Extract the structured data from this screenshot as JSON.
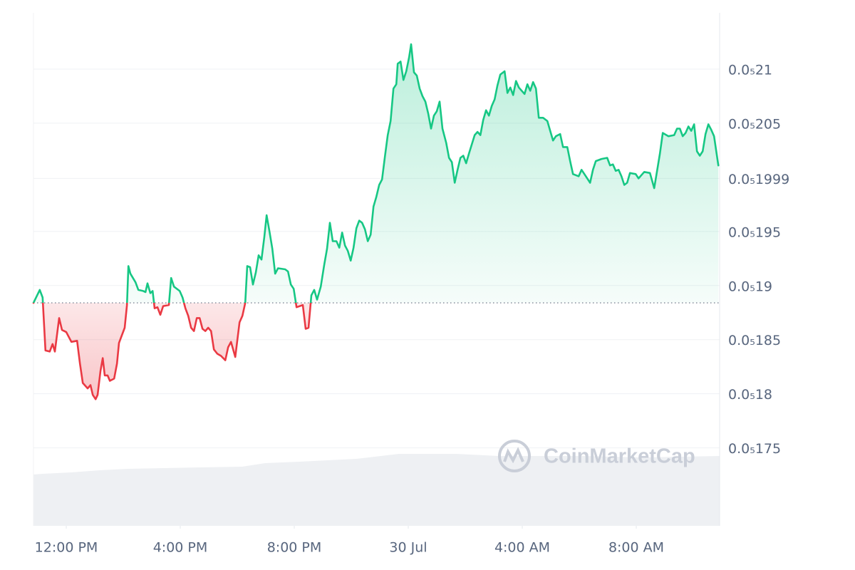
{
  "chart_data": {
    "type": "line",
    "watermark": "CoinMarketCap",
    "up_color": "#16c784",
    "down_color": "#ea3943",
    "grid": true,
    "baseline": 1.884e-06,
    "xlim": [
      -1.15,
      22.925
    ],
    "ylim": [
      1.678e-06,
      2.152e-06
    ],
    "xticks": [
      {
        "value": 0,
        "label": "12:00 PM"
      },
      {
        "value": 4,
        "label": "4:00 PM"
      },
      {
        "value": 8,
        "label": "8:00 PM"
      },
      {
        "value": 12,
        "label": "30 Jul"
      },
      {
        "value": 16,
        "label": "4:00 AM"
      },
      {
        "value": 20,
        "label": "8:00 AM"
      }
    ],
    "yticks": [
      {
        "value": 2.1e-06,
        "label": "0.0₅21"
      },
      {
        "value": 2.05e-06,
        "label": "0.0₅205"
      },
      {
        "value": 1.999e-06,
        "label": "0.0₅1999"
      },
      {
        "value": 1.95e-06,
        "label": "0.0₅195"
      },
      {
        "value": 1.9e-06,
        "label": "0.0₅19"
      },
      {
        "value": 1.85e-06,
        "label": "0.0₅185"
      },
      {
        "value": 1.8e-06,
        "label": "0.0₅18"
      },
      {
        "value": 1.75e-06,
        "label": "0.0₅175"
      }
    ],
    "x": [
      -1.15,
      -0.93,
      -0.83,
      -0.73,
      -0.58,
      -0.48,
      -0.4,
      -0.25,
      -0.15,
      0,
      0.18,
      0.38,
      0.48,
      0.58,
      0.75,
      0.85,
      0.93,
      1.03,
      1.1,
      1.2,
      1.28,
      1.35,
      1.45,
      1.53,
      1.68,
      1.78,
      1.85,
      2.05,
      2.13,
      2.18,
      2.25,
      2.43,
      2.53,
      2.7,
      2.78,
      2.85,
      2.95,
      3.03,
      3.1,
      3.2,
      3.3,
      3.4,
      3.6,
      3.68,
      3.78,
      3.98,
      4.08,
      4.18,
      4.28,
      4.38,
      4.48,
      4.58,
      4.68,
      4.78,
      4.88,
      4.98,
      5.08,
      5.18,
      5.3,
      5.43,
      5.58,
      5.68,
      5.78,
      5.93,
      6.08,
      6.18,
      6.28,
      6.35,
      6.45,
      6.55,
      6.65,
      6.75,
      6.85,
      6.95,
      7.03,
      7.13,
      7.23,
      7.33,
      7.43,
      7.68,
      7.78,
      7.88,
      7.98,
      8.08,
      8.3,
      8.4,
      8.5,
      8.6,
      8.7,
      8.8,
      8.93,
      9.05,
      9.15,
      9.25,
      9.35,
      9.48,
      9.58,
      9.68,
      9.78,
      9.88,
      9.98,
      10.08,
      10.18,
      10.28,
      10.38,
      10.48,
      10.58,
      10.68,
      10.78,
      10.88,
      10.98,
      11.08,
      11.18,
      11.28,
      11.38,
      11.48,
      11.58,
      11.63,
      11.73,
      11.83,
      11.93,
      12.03,
      12.1,
      12.2,
      12.3,
      12.4,
      12.5,
      12.6,
      12.7,
      12.8,
      12.9,
      13.0,
      13.1,
      13.2,
      13.33,
      13.43,
      13.53,
      13.63,
      13.73,
      13.83,
      13.93,
      14.03,
      14.13,
      14.33,
      14.43,
      14.53,
      14.63,
      14.73,
      14.83,
      14.93,
      15.03,
      15.13,
      15.23,
      15.38,
      15.48,
      15.58,
      15.68,
      15.78,
      15.88,
      16.08,
      16.18,
      16.28,
      16.38,
      16.48,
      16.58,
      16.73,
      16.88,
      16.98,
      17.08,
      17.18,
      17.33,
      17.43,
      17.58,
      17.68,
      17.78,
      17.98,
      18.08,
      18.18,
      18.38,
      18.48,
      18.58,
      18.78,
      18.98,
      19.08,
      19.18,
      19.28,
      19.38,
      19.48,
      19.58,
      19.68,
      19.78,
      19.98,
      20.08,
      20.28,
      20.48,
      20.63,
      20.73,
      20.83,
      20.93,
      21.13,
      21.33,
      21.43,
      21.53,
      21.63,
      21.73,
      21.83,
      21.93,
      22.03,
      22.13,
      22.23,
      22.33,
      22.43,
      22.53,
      22.63,
      22.73,
      22.88
    ],
    "values": [
      1.884e-06,
      1.896e-06,
      1.889e-06,
      1.84e-06,
      1.839e-06,
      1.846e-06,
      1.839e-06,
      1.87e-06,
      1.859e-06,
      1.857e-06,
      1.848e-06,
      1.849e-06,
      1.828e-06,
      1.81e-06,
      1.805e-06,
      1.808e-06,
      1.799e-06,
      1.795e-06,
      1.799e-06,
      1.821e-06,
      1.833e-06,
      1.817e-06,
      1.817e-06,
      1.812e-06,
      1.814e-06,
      1.828e-06,
      1.847e-06,
      1.861e-06,
      1.882e-06,
      1.918e-06,
      1.911e-06,
      1.903e-06,
      1.896e-06,
      1.895e-06,
      1.894e-06,
      1.902e-06,
      1.893e-06,
      1.895e-06,
      1.879e-06,
      1.88e-06,
      1.873e-06,
      1.881e-06,
      1.882e-06,
      1.907e-06,
      1.899e-06,
      1.895e-06,
      1.889e-06,
      1.879e-06,
      1.872e-06,
      1.861e-06,
      1.858e-06,
      1.87e-06,
      1.87e-06,
      1.86e-06,
      1.858e-06,
      1.861e-06,
      1.858e-06,
      1.841e-06,
      1.837e-06,
      1.835e-06,
      1.831e-06,
      1.843e-06,
      1.848e-06,
      1.834e-06,
      1.866e-06,
      1.872e-06,
      1.884e-06,
      1.918e-06,
      1.917e-06,
      1.901e-06,
      1.912e-06,
      1.928e-06,
      1.924e-06,
      1.945e-06,
      1.965e-06,
      1.95e-06,
      1.934e-06,
      1.911e-06,
      1.916e-06,
      1.915e-06,
      1.913e-06,
      1.901e-06,
      1.897e-06,
      1.88e-06,
      1.882e-06,
      1.86e-06,
      1.861e-06,
      1.891e-06,
      1.896e-06,
      1.887e-06,
      1.899e-06,
      1.919e-06,
      1.934e-06,
      1.958e-06,
      1.941e-06,
      1.941e-06,
      1.935e-06,
      1.949e-06,
      1.937e-06,
      1.932e-06,
      1.923e-06,
      1.935e-06,
      1.953e-06,
      1.96e-06,
      1.958e-06,
      1.952e-06,
      1.941e-06,
      1.947e-06,
      1.973e-06,
      1.982e-06,
      1.993e-06,
      1.998e-06,
      2.019e-06,
      2.039e-06,
      2.052e-06,
      2.082e-06,
      2.086e-06,
      2.105e-06,
      2.107e-06,
      2.09e-06,
      2.098e-06,
      2.111e-06,
      2.123e-06,
      2.097e-06,
      2.094e-06,
      2.082e-06,
      2.075e-06,
      2.07e-06,
      2.059e-06,
      2.045e-06,
      2.057e-06,
      2.061e-06,
      2.07e-06,
      2.045e-06,
      2.032e-06,
      2.018e-06,
      2.014e-06,
      1.995e-06,
      2.007e-06,
      2.018e-06,
      2.02e-06,
      2.013e-06,
      2.022e-06,
      2.039e-06,
      2.042e-06,
      2.039e-06,
      2.053e-06,
      2.062e-06,
      2.057e-06,
      2.066e-06,
      2.072e-06,
      2.085e-06,
      2.095e-06,
      2.098e-06,
      2.078e-06,
      2.083e-06,
      2.076e-06,
      2.089e-06,
      2.083e-06,
      2.077e-06,
      2.086e-06,
      2.08e-06,
      2.088e-06,
      2.082e-06,
      2.055e-06,
      2.055e-06,
      2.052e-06,
      2.043e-06,
      2.034e-06,
      2.038e-06,
      2.04e-06,
      2.028e-06,
      2.028e-06,
      2.015e-06,
      2.003e-06,
      2.001e-06,
      2.007e-06,
      2.003e-06,
      1.995e-06,
      2.007e-06,
      2.015e-06,
      2.017e-06,
      2.018e-06,
      2.011e-06,
      2.012e-06,
      2.006e-06,
      2.007e-06,
      2.001e-06,
      1.993e-06,
      1.995e-06,
      2.004e-06,
      2.003e-06,
      1.999e-06,
      2.005e-06,
      2.004e-06,
      1.99e-06,
      2.006e-06,
      2.022e-06,
      2.041e-06,
      2.038e-06,
      2.039e-06,
      2.045e-06,
      2.045e-06,
      2.038e-06,
      2.041e-06,
      2.047e-06,
      2.043e-06,
      2.049e-06,
      2.024e-06,
      2.02e-06,
      2.024e-06,
      2.04e-06,
      2.049e-06,
      2.044e-06,
      2.038e-06,
      2.011e-06
    ]
  }
}
